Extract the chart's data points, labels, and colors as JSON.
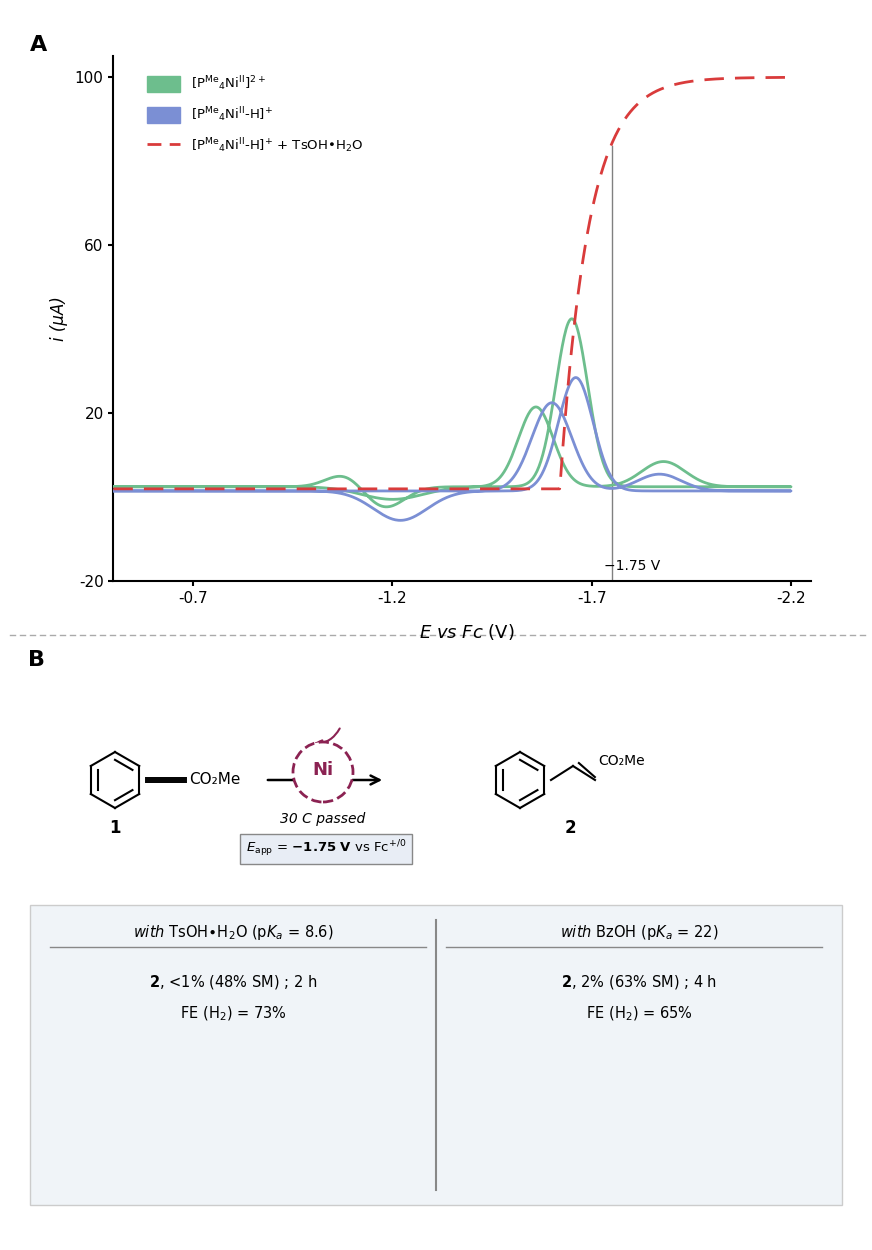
{
  "panel_A_label": "A",
  "panel_B_label": "B",
  "ylabel": "i (μA)",
  "xlim_left": -0.5,
  "xlim_right": -2.25,
  "ylim_bottom": -20,
  "ylim_top": 105,
  "yticks": [
    -20,
    20,
    60,
    100
  ],
  "xticks": [
    -0.7,
    -1.2,
    -1.7,
    -2.2
  ],
  "vline_x": -1.75,
  "vline_label": "−1.75 V",
  "legend_label_green": "[P$^{\\rm Me}$$_4$Ni$^{\\rm II}$]$^{2+}$",
  "legend_label_blue": "[P$^{\\rm Me}$$_4$Ni$^{\\rm II}$-H]$^{+}$",
  "legend_label_red": "[P$^{\\rm Me}$$_4$Ni$^{\\rm II}$-H]$^{+}$ + TsOH•H$_2$O",
  "green_color": "#6dbe8d",
  "blue_color": "#7b8fd4",
  "red_color": "#d93b3b",
  "ni_circle_color": "#8b2252",
  "table_bg_color": "#f0f4f8",
  "table_border_color": "#cccccc",
  "ebox_bg_color": "#e8edf5",
  "ebox_border_color": "#888888"
}
